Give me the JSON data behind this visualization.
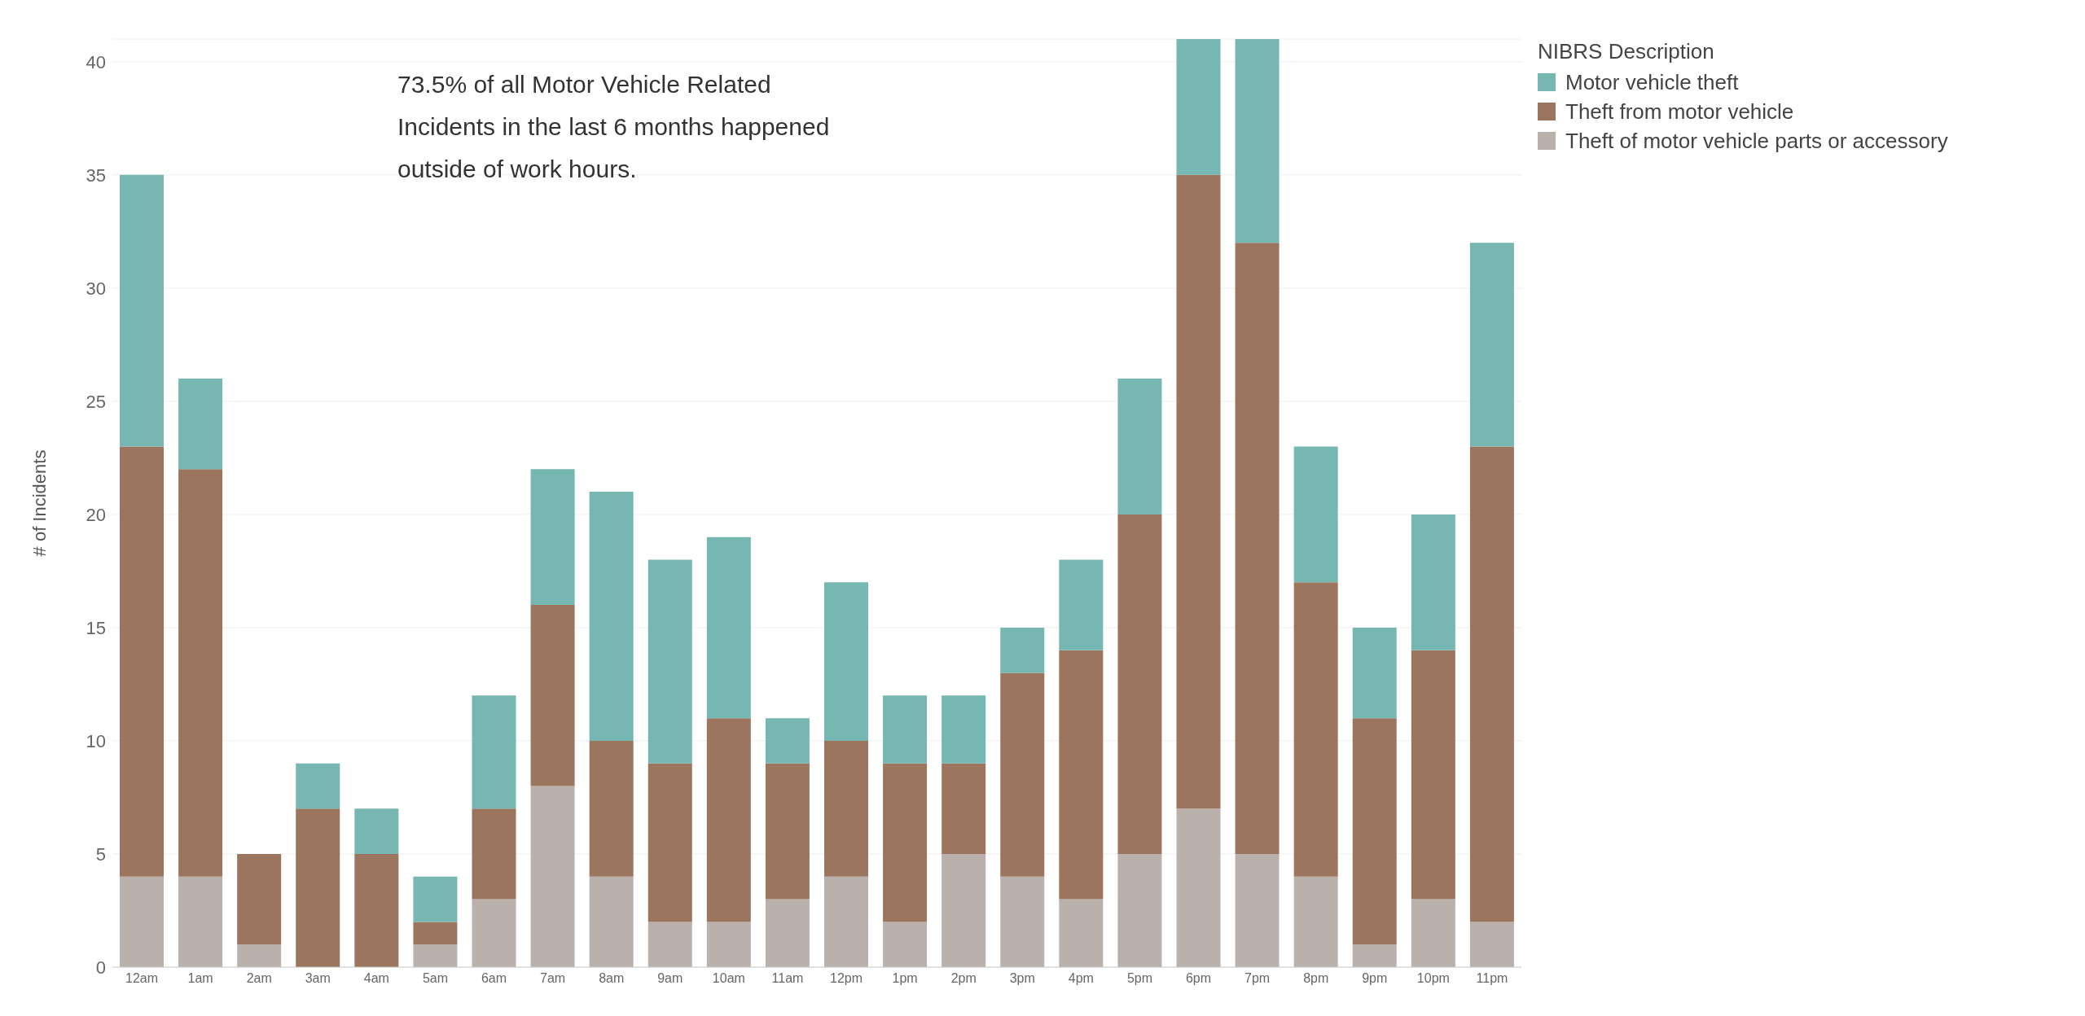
{
  "chart_data": {
    "type": "bar",
    "stacked": true,
    "ylabel": "# of Incidents",
    "legend_title": "NIBRS Description",
    "legend": "top right",
    "grid": "y",
    "annotations": [
      "73.5% of all Motor Vehicle Related Incidents in the last 6 months happened outside of work hours."
    ],
    "categories": [
      "12am",
      "1am",
      "2am",
      "3am",
      "4am",
      "5am",
      "6am",
      "7am",
      "8am",
      "9am",
      "10am",
      "11am",
      "12pm",
      "1pm",
      "2pm",
      "3pm",
      "4pm",
      "5pm",
      "6pm",
      "7pm",
      "8pm",
      "9pm",
      "10pm",
      "11pm"
    ],
    "ylim": [
      0,
      41
    ],
    "yticks": [
      0,
      5,
      10,
      15,
      20,
      25,
      30,
      35,
      40
    ],
    "series": [
      {
        "name": "Theft of motor vehicle parts or accessory",
        "color": "#bab0ac",
        "values": [
          4,
          4,
          1,
          0,
          0,
          1,
          3,
          8,
          4,
          2,
          2,
          3,
          4,
          2,
          5,
          4,
          3,
          5,
          7,
          5,
          4,
          1,
          3,
          2
        ]
      },
      {
        "name": "Theft from motor vehicle",
        "color": "#9c755f",
        "values": [
          19,
          18,
          4,
          7,
          5,
          1,
          4,
          8,
          6,
          7,
          9,
          6,
          6,
          7,
          4,
          9,
          11,
          15,
          28,
          27,
          13,
          10,
          11,
          21
        ]
      },
      {
        "name": "Motor vehicle theft",
        "color": "#76b7b2",
        "values": [
          12,
          4,
          0,
          2,
          2,
          2,
          5,
          6,
          11,
          9,
          8,
          2,
          7,
          3,
          3,
          2,
          4,
          6,
          6,
          9,
          6,
          4,
          6,
          9
        ]
      }
    ]
  }
}
